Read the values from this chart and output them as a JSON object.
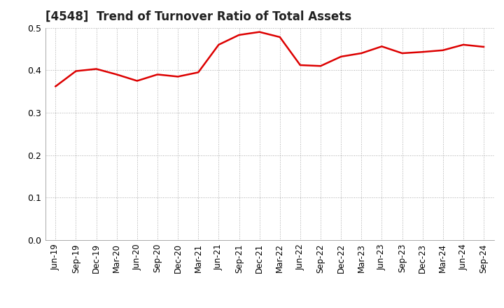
{
  "title": "[4548]  Trend of Turnover Ratio of Total Assets",
  "line_color": "#dd0000",
  "line_width": 1.8,
  "background_color": "#ffffff",
  "grid_color": "#aaaaaa",
  "ylim": [
    0.0,
    0.5
  ],
  "yticks": [
    0.0,
    0.1,
    0.2,
    0.3,
    0.4,
    0.5
  ],
  "labels": [
    "Jun-19",
    "Sep-19",
    "Dec-19",
    "Mar-20",
    "Jun-20",
    "Sep-20",
    "Dec-20",
    "Mar-21",
    "Jun-21",
    "Sep-21",
    "Dec-21",
    "Mar-22",
    "Jun-22",
    "Sep-22",
    "Dec-22",
    "Mar-23",
    "Jun-23",
    "Sep-23",
    "Dec-23",
    "Mar-24",
    "Jun-24",
    "Sep-24"
  ],
  "values": [
    0.362,
    0.398,
    0.403,
    0.39,
    0.375,
    0.39,
    0.385,
    0.395,
    0.46,
    0.483,
    0.49,
    0.478,
    0.412,
    0.41,
    0.432,
    0.44,
    0.456,
    0.44,
    0.443,
    0.447,
    0.46,
    0.455
  ],
  "title_fontsize": 12,
  "tick_fontsize": 8.5,
  "ytick_fontsize": 9
}
